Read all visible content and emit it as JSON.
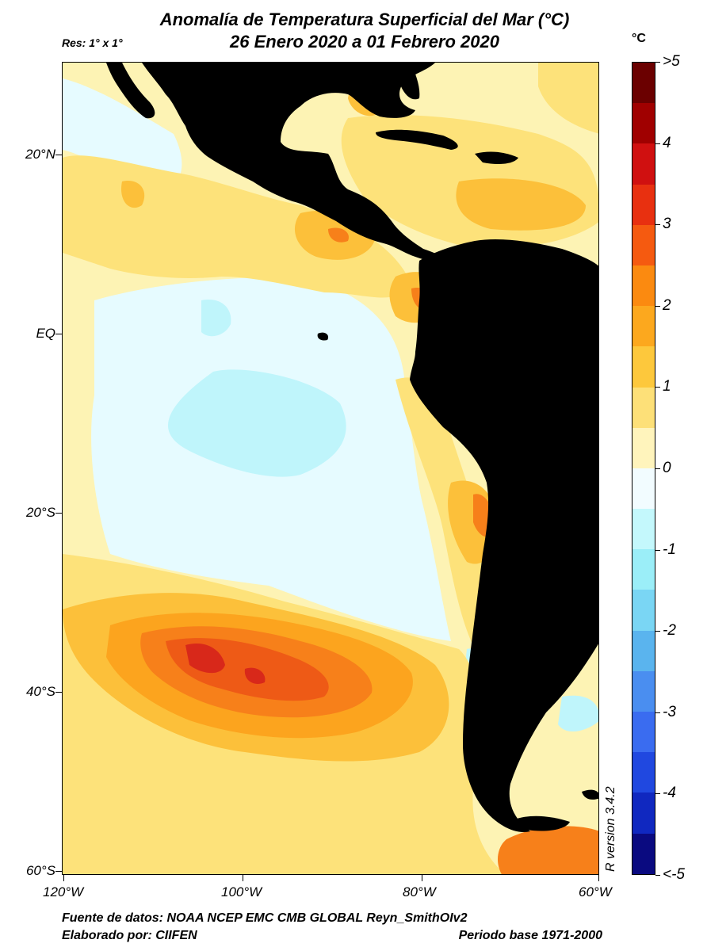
{
  "title": {
    "line1": "Anomalía de Temperatura Superficial del Mar (°C)",
    "line2": "26 Enero 2020 a 01 Febrero 2020"
  },
  "resolution": "Res: 1° x 1°",
  "unit": "°C",
  "lat_labels": [
    "20°N",
    "EQ",
    "20°S",
    "40°S",
    "60°S"
  ],
  "lon_labels": [
    "120°W",
    "100°W",
    "80°W",
    "60°W"
  ],
  "colorbar": {
    "labels": [
      ">5",
      "4",
      "3",
      "2",
      "1",
      "0",
      "-1",
      "-2",
      "-3",
      "-4",
      "<-5"
    ],
    "colors": [
      "#6b0000",
      "#a00000",
      "#d01010",
      "#e83010",
      "#f55a10",
      "#fb8a10",
      "#fca81e",
      "#fdc83c",
      "#fde078",
      "#fff4bc",
      "#f2fcff",
      "#c4f8fc",
      "#9beef8",
      "#7ad6f4",
      "#5ab4ee",
      "#4a8ef0",
      "#3a6cf0",
      "#2048e0",
      "#1028c0",
      "#0a0a80"
    ],
    "ticks_step": "1"
  },
  "map_colors": {
    "land": "#000000",
    "ocean_base": "#fdf3b4",
    "warm1": "#fde27a",
    "warm2": "#fcc03a",
    "warm3": "#fca41e",
    "warm4": "#f7801a",
    "warm5": "#ee5a16",
    "warm6": "#d8281a",
    "cool1": "#e6fbff",
    "cool2": "#bff5fb",
    "cool3": "#8ee6f6",
    "cool4": "#5ec8f2"
  },
  "r_version": "R version 3.4.2",
  "footer": {
    "source": "Fuente de datos: NOAA NCEP EMC CMB GLOBAL Reyn_SmithOIv2",
    "author": "Elaborado por: CIIFEN",
    "period": "Periodo base 1971-2000"
  }
}
